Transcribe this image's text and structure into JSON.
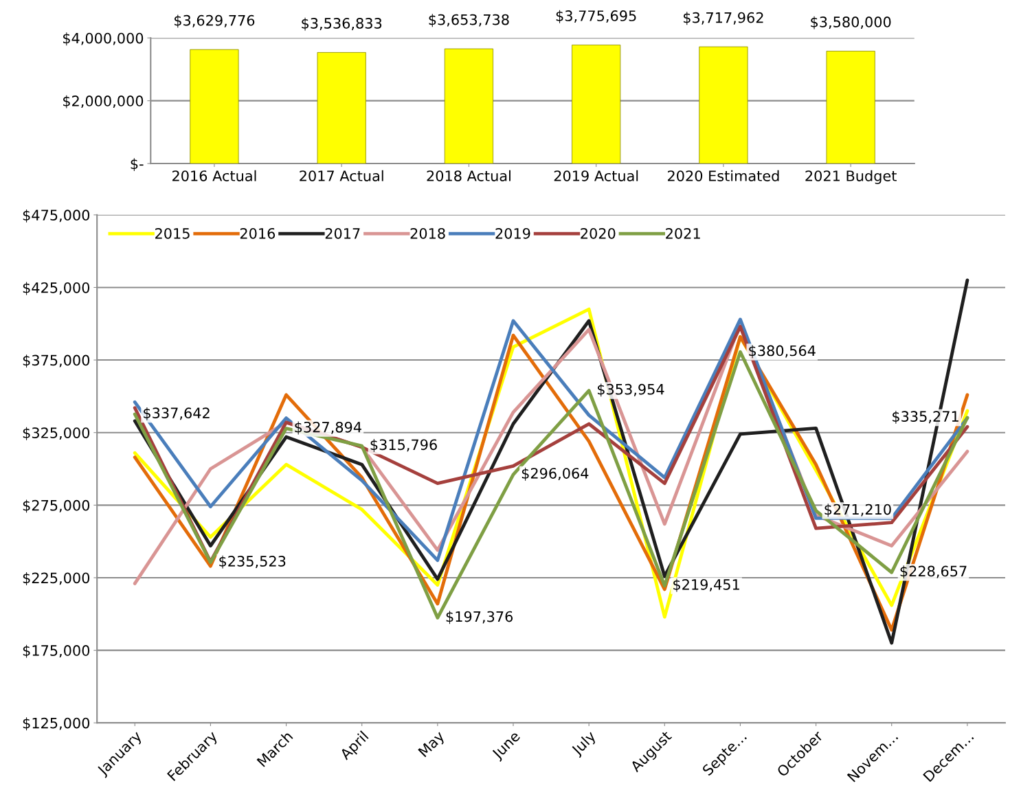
{
  "chart_data": [
    {
      "type": "bar",
      "categories": [
        "2016 Actual",
        "2017 Actual",
        "2018 Actual",
        "2019 Actual",
        "2020 Estimated",
        "2021 Budget"
      ],
      "values": [
        3629776,
        3536833,
        3653738,
        3775695,
        3717962,
        3580000
      ],
      "value_labels": [
        "$3,629,776",
        "$3,536,833",
        "$3,653,738",
        "$3,775,695",
        "$3,717,962",
        "$3,580,000"
      ],
      "color": "#ffff00",
      "ylim": [
        0,
        4000000
      ],
      "yticks": [
        {
          "value": 0,
          "label": "$-"
        },
        {
          "value": 2000000,
          "label": "$2,000,000"
        },
        {
          "value": 4000000,
          "label": "$4,000,000"
        }
      ],
      "grid": "y"
    },
    {
      "type": "line",
      "categories": [
        "January",
        "February",
        "March",
        "April",
        "May",
        "June",
        "July",
        "August",
        "Septe…",
        "October",
        "Novem…",
        "Decem…"
      ],
      "series": [
        {
          "name": "2015",
          "color": "#ffff00",
          "values": [
            311000,
            253000,
            303000,
            272000,
            220000,
            384000,
            410000,
            198000,
            391000,
            299000,
            206000,
            340000
          ]
        },
        {
          "name": "2016",
          "color": "#e36c09",
          "values": [
            308000,
            233000,
            351000,
            294000,
            207000,
            392000,
            319000,
            217000,
            391000,
            303000,
            189000,
            351000
          ]
        },
        {
          "name": "2017",
          "color": "#1f1f1f",
          "values": [
            333000,
            247000,
            322000,
            303000,
            224000,
            331000,
            402000,
            226000,
            324000,
            328000,
            180000,
            430000
          ]
        },
        {
          "name": "2018",
          "color": "#d99594",
          "values": [
            221000,
            300000,
            332000,
            315000,
            244000,
            339000,
            396000,
            262000,
            400000,
            268000,
            247000,
            312000
          ]
        },
        {
          "name": "2019",
          "color": "#4a7ebb",
          "values": [
            346000,
            274000,
            335000,
            292000,
            237000,
            402000,
            337000,
            294000,
            403000,
            266000,
            266000,
            335000
          ]
        },
        {
          "name": "2020",
          "color": "#a5403d",
          "values": [
            342000,
            236000,
            332000,
            315000,
            290000,
            302000,
            331000,
            290000,
            398000,
            259000,
            263000,
            329000
          ]
        },
        {
          "name": "2021",
          "color": "#7f9f44",
          "values": [
            337642,
            235523,
            327894,
            315796,
            197376,
            296064,
            353954,
            219451,
            380564,
            271210,
            228657,
            335271
          ],
          "value_labels": [
            "$337,642",
            "$235,523",
            "$327,894",
            "$315,796",
            "$197,376",
            "$296,064",
            "$353,954",
            "$219,451",
            "$380,564",
            "$271,210",
            "$228,657",
            "$335,271"
          ]
        }
      ],
      "ylim": [
        125000,
        475000
      ],
      "yticks": [
        {
          "value": 125000,
          "label": "$125,000"
        },
        {
          "value": 175000,
          "label": "$175,000"
        },
        {
          "value": 225000,
          "label": "$225,000"
        },
        {
          "value": 275000,
          "label": "$275,000"
        },
        {
          "value": 325000,
          "label": "$325,000"
        },
        {
          "value": 375000,
          "label": "$375,000"
        },
        {
          "value": 425000,
          "label": "$425,000"
        },
        {
          "value": 475000,
          "label": "$475,000"
        }
      ],
      "grid": "y",
      "legend": "top left"
    }
  ]
}
